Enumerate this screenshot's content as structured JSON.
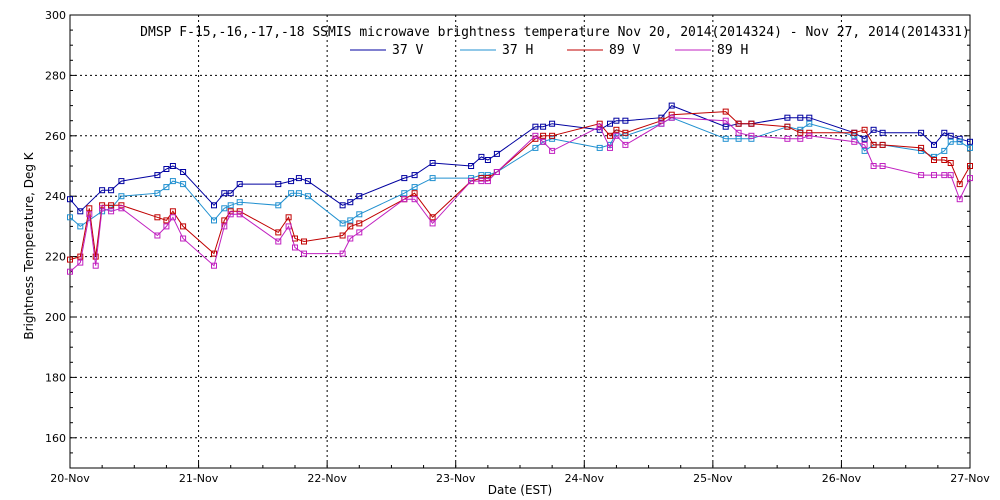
{
  "chart_data": {
    "type": "line",
    "title": "DMSP F-15,-16,-17,-18 SSMIS microwave brightness temperature Nov 20, 2014(2014324) - Nov 27, 2014(2014331)",
    "xlabel": "Date (EST)",
    "ylabel": "Brightness Temperature, Deg K",
    "xlim": [
      0,
      7
    ],
    "ylim": [
      150,
      300
    ],
    "x_ticks": [
      0,
      1,
      2,
      3,
      4,
      5,
      6,
      7
    ],
    "x_tick_labels": [
      "20-Nov",
      "21-Nov",
      "22-Nov",
      "23-Nov",
      "24-Nov",
      "25-Nov",
      "26-Nov",
      "27-Nov"
    ],
    "y_ticks": [
      160,
      180,
      200,
      220,
      240,
      260,
      280,
      300
    ],
    "y_tick_labels": [
      "160",
      "180",
      "200",
      "220",
      "240",
      "260",
      "280",
      "300"
    ],
    "grid": true,
    "legend_position": "top-center",
    "series": [
      {
        "name": "37 V",
        "color": "#0000a0",
        "x": [
          0.0,
          0.08,
          0.25,
          0.32,
          0.4,
          0.68,
          0.75,
          0.8,
          0.88,
          1.12,
          1.2,
          1.25,
          1.32,
          1.62,
          1.72,
          1.78,
          1.85,
          2.12,
          2.18,
          2.25,
          2.6,
          2.68,
          2.82,
          3.12,
          3.2,
          3.25,
          3.32,
          3.62,
          3.68,
          3.75,
          4.12,
          4.2,
          4.25,
          4.32,
          4.6,
          4.68,
          5.1,
          5.2,
          5.3,
          5.58,
          5.68,
          5.75,
          6.1,
          6.18,
          6.25,
          6.32,
          6.62,
          6.72,
          6.8,
          6.85,
          6.92,
          7.0
        ],
        "y": [
          239,
          235,
          242,
          242,
          245,
          247,
          249,
          250,
          248,
          237,
          241,
          241,
          244,
          244,
          245,
          246,
          245,
          237,
          238,
          240,
          246,
          247,
          251,
          250,
          253,
          252,
          254,
          263,
          263,
          264,
          262,
          264,
          265,
          265,
          266,
          270,
          263,
          264,
          264,
          266,
          266,
          266,
          261,
          259,
          262,
          261,
          261,
          257,
          261,
          260,
          259,
          258
        ]
      },
      {
        "name": "37 H",
        "color": "#2090d0",
        "x": [
          0.0,
          0.08,
          0.25,
          0.32,
          0.4,
          0.68,
          0.75,
          0.8,
          0.88,
          1.12,
          1.2,
          1.25,
          1.32,
          1.62,
          1.72,
          1.78,
          1.85,
          2.12,
          2.18,
          2.25,
          2.6,
          2.68,
          2.82,
          3.12,
          3.2,
          3.25,
          3.32,
          3.62,
          3.68,
          3.75,
          4.12,
          4.2,
          4.25,
          4.32,
          4.6,
          4.68,
          5.1,
          5.2,
          5.3,
          5.58,
          5.68,
          5.75,
          6.1,
          6.18,
          6.25,
          6.32,
          6.62,
          6.72,
          6.8,
          6.85,
          6.92,
          7.0
        ],
        "y": [
          233,
          230,
          235,
          236,
          240,
          241,
          243,
          245,
          244,
          232,
          236,
          237,
          238,
          237,
          241,
          241,
          240,
          231,
          232,
          234,
          241,
          243,
          246,
          246,
          247,
          247,
          248,
          256,
          258,
          259,
          256,
          257,
          261,
          260,
          264,
          266,
          259,
          259,
          259,
          263,
          262,
          264,
          260,
          255,
          257,
          257,
          255,
          253,
          255,
          258,
          258,
          256
        ]
      },
      {
        "name": "89 V",
        "color": "#c00000",
        "x": [
          0.0,
          0.08,
          0.15,
          0.2,
          0.25,
          0.32,
          0.4,
          0.68,
          0.75,
          0.8,
          0.88,
          1.12,
          1.2,
          1.25,
          1.32,
          1.62,
          1.7,
          1.75,
          1.82,
          2.12,
          2.18,
          2.25,
          2.6,
          2.68,
          2.82,
          3.12,
          3.2,
          3.25,
          3.32,
          3.62,
          3.68,
          3.75,
          4.12,
          4.2,
          4.25,
          4.32,
          4.6,
          4.68,
          5.1,
          5.2,
          5.3,
          5.58,
          5.68,
          5.75,
          6.1,
          6.18,
          6.25,
          6.32,
          6.62,
          6.72,
          6.8,
          6.85,
          6.92,
          7.0
        ],
        "y": [
          219,
          220,
          236,
          220,
          237,
          237,
          237,
          233,
          232,
          235,
          230,
          221,
          232,
          235,
          235,
          228,
          233,
          226,
          225,
          227,
          230,
          231,
          239,
          241,
          233,
          245,
          246,
          246,
          248,
          259,
          260,
          260,
          264,
          260,
          262,
          261,
          265,
          267,
          268,
          264,
          264,
          263,
          261,
          261,
          261,
          262,
          257,
          257,
          256,
          252,
          252,
          251,
          244,
          250
        ]
      },
      {
        "name": "89 H",
        "color": "#c020c0",
        "x": [
          0.0,
          0.08,
          0.15,
          0.2,
          0.25,
          0.32,
          0.4,
          0.68,
          0.75,
          0.8,
          0.88,
          1.12,
          1.2,
          1.25,
          1.32,
          1.62,
          1.7,
          1.75,
          1.82,
          2.12,
          2.18,
          2.25,
          2.6,
          2.68,
          2.82,
          3.12,
          3.2,
          3.25,
          3.32,
          3.62,
          3.68,
          3.75,
          4.12,
          4.2,
          4.25,
          4.32,
          4.6,
          4.68,
          5.1,
          5.2,
          5.3,
          5.58,
          5.68,
          5.75,
          6.1,
          6.18,
          6.25,
          6.32,
          6.62,
          6.72,
          6.8,
          6.85,
          6.92,
          7.0
        ],
        "y": [
          215,
          218,
          234,
          217,
          236,
          235,
          236,
          227,
          230,
          233,
          226,
          217,
          230,
          234,
          234,
          225,
          230,
          223,
          221,
          221,
          226,
          228,
          239,
          239,
          231,
          245,
          245,
          245,
          248,
          260,
          258,
          255,
          263,
          256,
          260,
          257,
          264,
          266,
          265,
          261,
          260,
          259,
          259,
          260,
          258,
          257,
          250,
          250,
          247,
          247,
          247,
          247,
          239,
          246
        ]
      }
    ]
  }
}
